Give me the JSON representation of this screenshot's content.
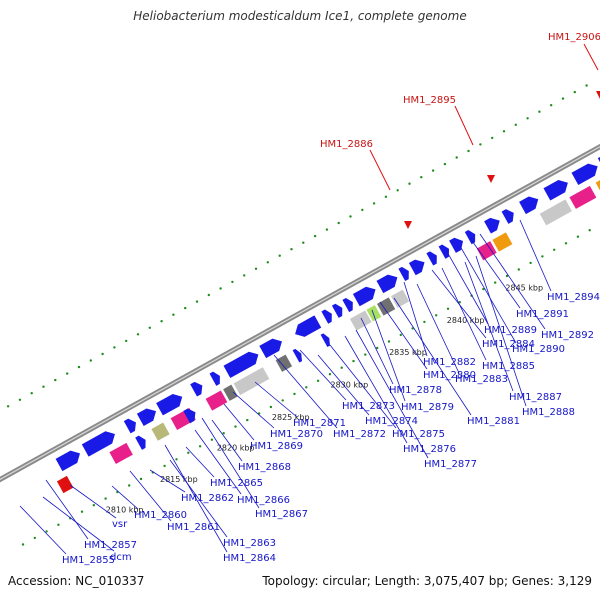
{
  "title": "Heliobacterium modesticaldum Ice1, complete genome",
  "footer": {
    "accession": "Accession: NC_010337",
    "summary": "Topology: circular; Length: 3,075,407 bp; Genes: 3,129"
  },
  "colors": {
    "cds": "#1a1ae6",
    "backbone": "#8a8a8a",
    "tick_green": "#1e8c1e",
    "highlight_red": "#e01010",
    "gene_label": "#1515c8",
    "pink": "#e8208a",
    "orange": "#f09a10",
    "grey_light": "#c8c8c8",
    "grey_dark": "#707070",
    "olive": "#b8b878",
    "lime": "#a8e060"
  },
  "kbp_labels": [
    "2810 kbp",
    "2815 kbp",
    "2820 kbp",
    "2825 kbp",
    "2830 kbp",
    "2835 kbp",
    "2840 kbp",
    "2845 kbp"
  ],
  "highlighted_genes": [
    "HM1_2886",
    "HM1_2895",
    "HM1_2906"
  ],
  "gene_labels": [
    "HM1_2855",
    "dcm",
    "HM1_2857",
    "vsr",
    "HM1_2860",
    "HM1_2861",
    "HM1_2862",
    "HM1_2863",
    "HM1_2864",
    "HM1_2865",
    "HM1_2866",
    "HM1_2867",
    "HM1_2868",
    "HM1_2869",
    "HM1_2870",
    "HM1_2871",
    "HM1_2872",
    "HM1_2873",
    "HM1_2874",
    "HM1_2875",
    "HM1_2876",
    "HM1_2877",
    "HM1_2878",
    "HM1_2879",
    "HM1_2880",
    "HM1_2881",
    "HM1_2882",
    "HM1_2883",
    "HM1_2884",
    "HM1_2885",
    "HM1_2887",
    "HM1_2888",
    "HM1_2889",
    "HM1_2890",
    "HM1_2891",
    "HM1_2892",
    "HM1_2894"
  ]
}
